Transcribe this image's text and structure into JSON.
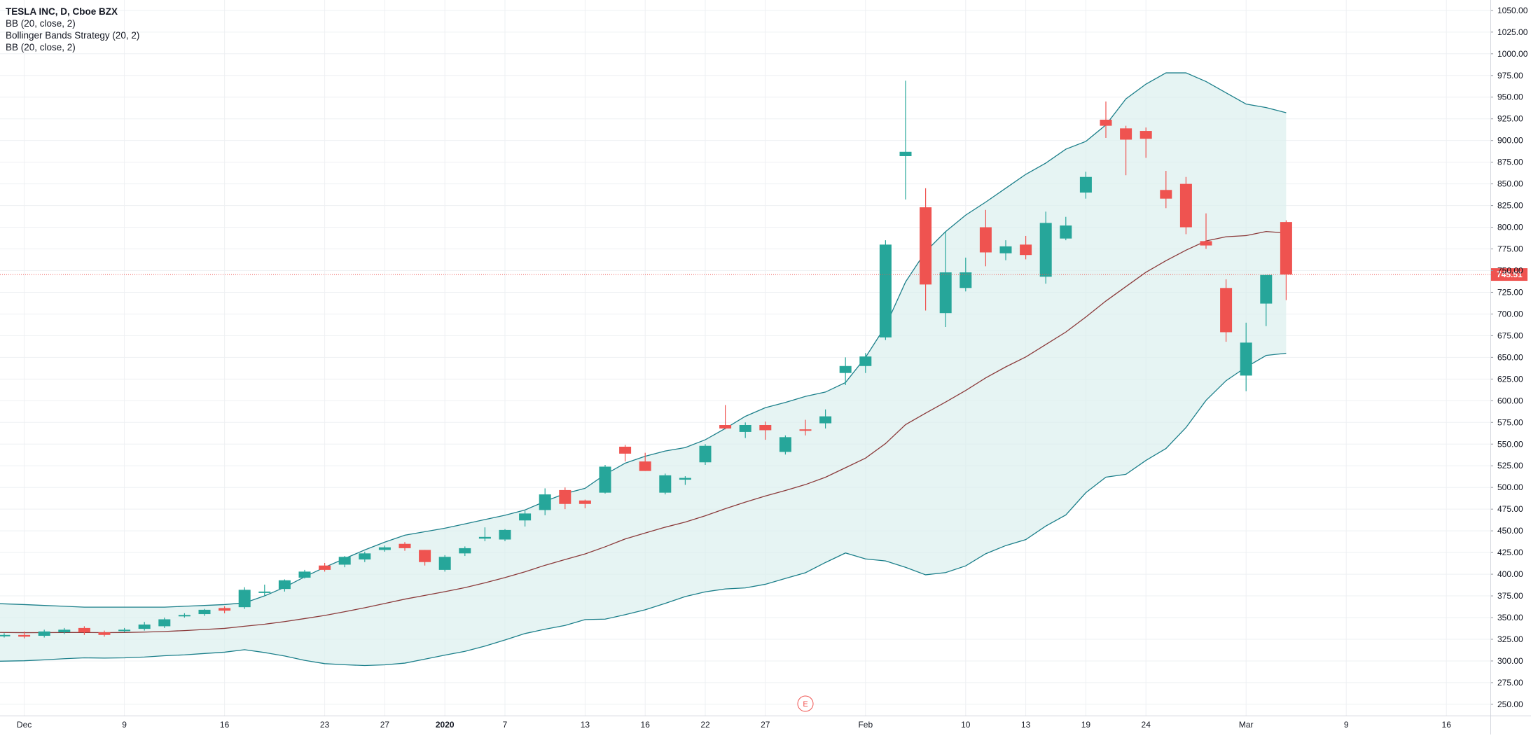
{
  "legend": {
    "symbol": "TESLA INC, D, Cboe BZX",
    "indicators": [
      "BB (20, close, 2)",
      "Bollinger Bands Strategy (20, 2)",
      "BB (20, close, 2)"
    ]
  },
  "colors": {
    "up": "#26a69a",
    "down": "#ef5350",
    "band": "#1b7f8a",
    "band_fill": "#d8eeec",
    "basis": "#8b3a3a",
    "grid": "#eef0f3",
    "price_line": "#ef5350",
    "axis_text": "#131722",
    "earnings": "#ef5350"
  },
  "chart_data": {
    "type": "candlestick",
    "title": "TESLA INC, D, Cboe BZX",
    "ylim": [
      237,
      1062
    ],
    "y_ticks": [
      250,
      275,
      300,
      325,
      350,
      375,
      400,
      425,
      450,
      475,
      500,
      525,
      550,
      575,
      600,
      625,
      650,
      675,
      700,
      725,
      750,
      775,
      800,
      825,
      850,
      875,
      900,
      925,
      950,
      975,
      1000,
      1025,
      1050
    ],
    "x_ticks": [
      {
        "label": "Dec",
        "slot": 1
      },
      {
        "label": "9",
        "slot": 6
      },
      {
        "label": "16",
        "slot": 11
      },
      {
        "label": "23",
        "slot": 16
      },
      {
        "label": "27",
        "slot": 19
      },
      {
        "label": "2020",
        "slot": 22
      },
      {
        "label": "7",
        "slot": 25
      },
      {
        "label": "13",
        "slot": 29
      },
      {
        "label": "16",
        "slot": 32
      },
      {
        "label": "22",
        "slot": 35
      },
      {
        "label": "27",
        "slot": 38
      },
      {
        "label": "Feb",
        "slot": 43
      },
      {
        "label": "10",
        "slot": 48
      },
      {
        "label": "13",
        "slot": 51
      },
      {
        "label": "19",
        "slot": 54
      },
      {
        "label": "24",
        "slot": 57
      },
      {
        "label": "Mar",
        "slot": 62
      },
      {
        "label": "9",
        "slot": 67
      },
      {
        "label": "16",
        "slot": 72
      }
    ],
    "last_price": 745.51,
    "last_price_label": "745.51",
    "earnings_marker": {
      "slot": 40,
      "label": "E"
    },
    "candles": [
      {
        "slot": 0,
        "o": 330,
        "h": 332,
        "l": 327,
        "c": 330
      },
      {
        "slot": 1,
        "o": 330,
        "h": 334,
        "l": 326,
        "c": 328
      },
      {
        "slot": 2,
        "o": 329,
        "h": 336,
        "l": 327,
        "c": 334
      },
      {
        "slot": 3,
        "o": 333,
        "h": 338,
        "l": 331,
        "c": 336
      },
      {
        "slot": 4,
        "o": 338,
        "h": 340,
        "l": 330,
        "c": 333
      },
      {
        "slot": 5,
        "o": 333,
        "h": 335,
        "l": 328,
        "c": 330
      },
      {
        "slot": 6,
        "o": 335,
        "h": 338,
        "l": 333,
        "c": 336
      },
      {
        "slot": 7,
        "o": 337,
        "h": 345,
        "l": 335,
        "c": 342
      },
      {
        "slot": 8,
        "o": 340,
        "h": 350,
        "l": 338,
        "c": 348
      },
      {
        "slot": 9,
        "o": 352,
        "h": 355,
        "l": 350,
        "c": 353
      },
      {
        "slot": 10,
        "o": 354,
        "h": 360,
        "l": 352,
        "c": 359
      },
      {
        "slot": 11,
        "o": 361,
        "h": 363,
        "l": 355,
        "c": 358
      },
      {
        "slot": 12,
        "o": 362,
        "h": 385,
        "l": 360,
        "c": 382
      },
      {
        "slot": 13,
        "o": 380,
        "h": 388,
        "l": 375,
        "c": 380
      },
      {
        "slot": 14,
        "o": 383,
        "h": 394,
        "l": 380,
        "c": 393
      },
      {
        "slot": 15,
        "o": 396,
        "h": 405,
        "l": 395,
        "c": 403
      },
      {
        "slot": 16,
        "o": 410,
        "h": 413,
        "l": 403,
        "c": 405
      },
      {
        "slot": 17,
        "o": 411,
        "h": 421,
        "l": 408,
        "c": 420
      },
      {
        "slot": 18,
        "o": 417,
        "h": 426,
        "l": 414,
        "c": 424
      },
      {
        "slot": 19,
        "o": 428,
        "h": 433,
        "l": 426,
        "c": 431
      },
      {
        "slot": 20,
        "o": 435,
        "h": 437,
        "l": 427,
        "c": 430
      },
      {
        "slot": 21,
        "o": 428,
        "h": 428,
        "l": 410,
        "c": 414
      },
      {
        "slot": 22,
        "o": 405,
        "h": 422,
        "l": 403,
        "c": 420
      },
      {
        "slot": 23,
        "o": 424,
        "h": 432,
        "l": 421,
        "c": 430
      },
      {
        "slot": 24,
        "o": 441,
        "h": 454,
        "l": 438,
        "c": 443
      },
      {
        "slot": 25,
        "o": 440,
        "h": 452,
        "l": 438,
        "c": 451
      },
      {
        "slot": 26,
        "o": 462,
        "h": 473,
        "l": 455,
        "c": 470
      },
      {
        "slot": 27,
        "o": 474,
        "h": 499,
        "l": 468,
        "c": 492
      },
      {
        "slot": 28,
        "o": 497,
        "h": 500,
        "l": 475,
        "c": 481
      },
      {
        "slot": 29,
        "o": 485,
        "h": 486,
        "l": 476,
        "c": 481
      },
      {
        "slot": 30,
        "o": 494,
        "h": 526,
        "l": 493,
        "c": 524
      },
      {
        "slot": 31,
        "o": 547,
        "h": 549,
        "l": 530,
        "c": 539
      },
      {
        "slot": 32,
        "o": 530,
        "h": 540,
        "l": 519,
        "c": 519
      },
      {
        "slot": 33,
        "o": 494,
        "h": 516,
        "l": 492,
        "c": 514
      },
      {
        "slot": 34,
        "o": 509,
        "h": 513,
        "l": 503,
        "c": 511
      },
      {
        "slot": 35,
        "o": 529,
        "h": 550,
        "l": 526,
        "c": 548
      },
      {
        "slot": 36,
        "o": 572,
        "h": 595,
        "l": 567,
        "c": 568
      },
      {
        "slot": 37,
        "o": 564,
        "h": 575,
        "l": 557,
        "c": 572
      },
      {
        "slot": 38,
        "o": 572,
        "h": 576,
        "l": 555,
        "c": 566
      },
      {
        "slot": 39,
        "o": 541,
        "h": 560,
        "l": 538,
        "c": 558
      },
      {
        "slot": 40,
        "o": 567,
        "h": 578,
        "l": 560,
        "c": 566
      },
      {
        "slot": 41,
        "o": 574,
        "h": 590,
        "l": 568,
        "c": 582
      },
      {
        "slot": 42,
        "o": 632,
        "h": 650,
        "l": 618,
        "c": 640
      },
      {
        "slot": 43,
        "o": 640,
        "h": 655,
        "l": 632,
        "c": 651
      },
      {
        "slot": 44,
        "o": 673,
        "h": 785,
        "l": 670,
        "c": 780
      },
      {
        "slot": 45,
        "o": 882,
        "h": 969,
        "l": 832,
        "c": 887
      },
      {
        "slot": 46,
        "o": 823,
        "h": 845,
        "l": 704,
        "c": 734
      },
      {
        "slot": 47,
        "o": 701,
        "h": 795,
        "l": 685,
        "c": 748
      },
      {
        "slot": 48,
        "o": 730,
        "h": 765,
        "l": 726,
        "c": 748
      },
      {
        "slot": 49,
        "o": 800,
        "h": 820,
        "l": 755,
        "c": 771
      },
      {
        "slot": 50,
        "o": 770,
        "h": 785,
        "l": 762,
        "c": 778
      },
      {
        "slot": 51,
        "o": 780,
        "h": 790,
        "l": 763,
        "c": 768
      },
      {
        "slot": 52,
        "o": 743,
        "h": 818,
        "l": 735,
        "c": 805
      },
      {
        "slot": 53,
        "o": 787,
        "h": 812,
        "l": 785,
        "c": 802
      },
      {
        "slot": 54,
        "o": 840,
        "h": 864,
        "l": 833,
        "c": 858
      },
      {
        "slot": 55,
        "o": 924,
        "h": 945,
        "l": 903,
        "c": 917
      },
      {
        "slot": 56,
        "o": 914,
        "h": 917,
        "l": 860,
        "c": 901
      },
      {
        "slot": 57,
        "o": 911,
        "h": 915,
        "l": 880,
        "c": 902
      },
      {
        "slot": 58,
        "o": 843,
        "h": 865,
        "l": 822,
        "c": 833
      },
      {
        "slot": 59,
        "o": 850,
        "h": 858,
        "l": 792,
        "c": 800
      },
      {
        "slot": 60,
        "o": 784,
        "h": 816,
        "l": 775,
        "c": 779
      },
      {
        "slot": 61,
        "o": 730,
        "h": 740,
        "l": 668,
        "c": 679
      },
      {
        "slot": 62,
        "o": 629,
        "h": 690,
        "l": 611,
        "c": 667
      },
      {
        "slot": 63,
        "o": 712,
        "h": 745,
        "l": 686,
        "c": 745
      },
      {
        "slot": 64,
        "o": 806,
        "h": 808,
        "l": 716,
        "c": 745.51
      }
    ],
    "bands": {
      "slots": [
        0,
        1,
        2,
        3,
        4,
        5,
        6,
        7,
        8,
        9,
        10,
        11,
        12,
        13,
        14,
        15,
        16,
        17,
        18,
        19,
        20,
        21,
        22,
        23,
        24,
        25,
        26,
        27,
        28,
        29,
        30,
        31,
        32,
        33,
        34,
        35,
        36,
        37,
        38,
        39,
        40,
        41,
        42,
        43,
        44,
        45,
        46,
        47,
        48,
        49,
        50,
        51,
        52,
        53,
        54,
        55,
        56,
        57,
        58,
        59,
        60,
        61,
        62,
        63,
        64
      ],
      "upper": [
        366,
        365,
        364,
        363,
        362,
        362,
        362,
        362,
        362,
        363,
        364,
        365,
        367,
        375,
        385,
        397,
        408,
        418,
        428,
        437,
        445,
        449,
        453,
        458,
        463,
        468,
        474,
        484,
        493,
        499,
        515,
        528,
        536,
        542,
        546,
        555,
        568,
        582,
        592,
        598,
        605,
        610,
        621,
        650,
        686,
        737,
        772,
        795,
        814,
        829,
        845,
        861,
        874,
        890,
        899,
        918,
        948,
        965,
        978,
        978,
        968,
        955,
        942,
        938,
        932
      ]
    }
  }
}
